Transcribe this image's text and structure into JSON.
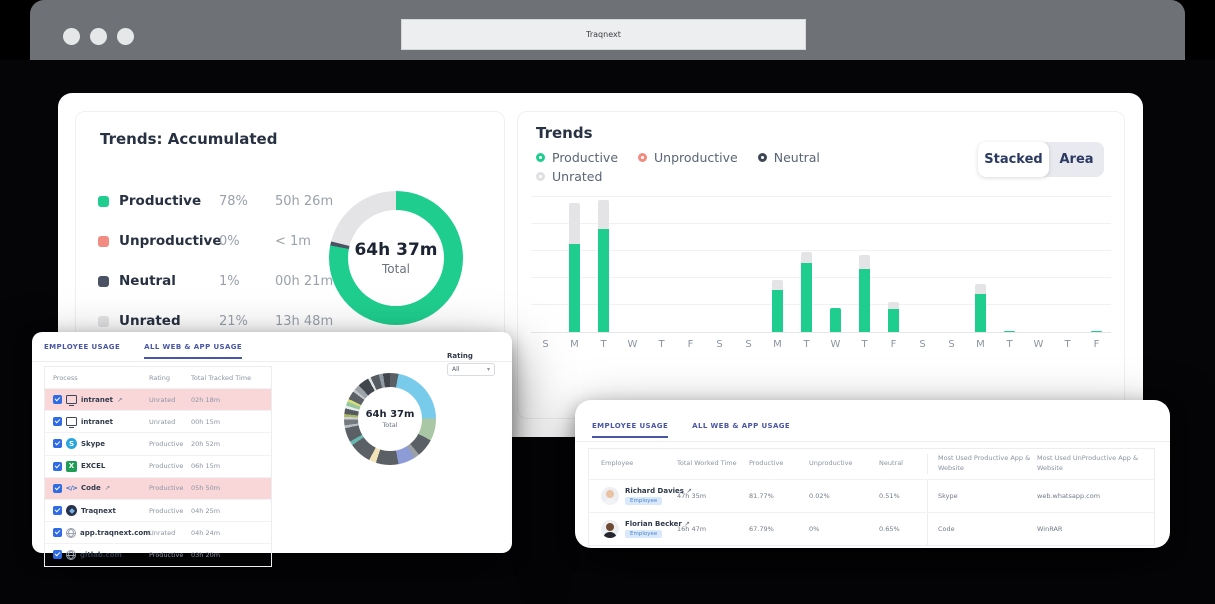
{
  "browser": {
    "url_text": "Traqnext"
  },
  "colors": {
    "productive": "#1fce8e",
    "unproductive": "#f28b82",
    "neutral": "#4a5264",
    "unrated": "#e4e4e6",
    "accent_indigo": "#4956a7",
    "flag_row_bg": "#f9d7d9"
  },
  "accumulated": {
    "title": "Trends: Accumulated",
    "legend": [
      {
        "label": "Productive",
        "pct": "78%",
        "time": "50h 26m",
        "color": "#1fce8e"
      },
      {
        "label": "Unproductive",
        "pct": "0%",
        "time": "< 1m",
        "color": "#f28b82"
      },
      {
        "label": "Neutral",
        "pct": "1%",
        "time": "00h 21m",
        "color": "#4a5264"
      },
      {
        "label": "Unrated",
        "pct": "21%",
        "time": "13h 48m",
        "color": "#e4e4e6"
      }
    ],
    "center_value": "64h 37m",
    "center_label": "Total"
  },
  "trends": {
    "title": "Trends",
    "legend_rows": [
      [
        {
          "label": "Productive",
          "color": "#1fce8e"
        },
        {
          "label": "Unproductive",
          "color": "#f28b82"
        },
        {
          "label": "Neutral",
          "color": "#3d4654"
        }
      ],
      [
        {
          "label": "Unrated",
          "color": "#e0e0e3"
        }
      ]
    ],
    "toggle": {
      "stacked_label": "Stacked",
      "area_label": "Area",
      "active": "Stacked"
    }
  },
  "usage_card": {
    "tabs": [
      "EMPLOYEE USAGE",
      "ALL WEB & APP USAGE"
    ],
    "active_tab": 1,
    "table": {
      "headers": [
        "Process",
        "Rating",
        "Total Tracked Time"
      ],
      "rows": [
        {
          "checked": true,
          "icon": "monitor",
          "name": "intranet",
          "external": true,
          "rating": "Unrated",
          "time": "02h 18m",
          "flagged": true
        },
        {
          "checked": true,
          "icon": "monitor",
          "name": "intranet",
          "external": false,
          "rating": "Unrated",
          "time": "00h 15m",
          "flagged": false
        },
        {
          "checked": true,
          "icon": "skype",
          "name": "Skype",
          "external": false,
          "rating": "Productive",
          "time": "20h 52m",
          "flagged": false
        },
        {
          "checked": true,
          "icon": "excel",
          "name": "EXCEL",
          "external": false,
          "rating": "Productive",
          "time": "06h 15m",
          "flagged": false
        },
        {
          "checked": true,
          "icon": "code",
          "name": "Code",
          "external": true,
          "rating": "Productive",
          "time": "05h 50m",
          "flagged": true
        },
        {
          "checked": true,
          "icon": "traqnext",
          "name": "Traqnext",
          "external": false,
          "rating": "Productive",
          "time": "04h 25m",
          "flagged": false
        },
        {
          "checked": true,
          "icon": "globe",
          "name": "app.traqnext.com",
          "external": false,
          "rating": "Unrated",
          "time": "04h 24m",
          "flagged": false
        },
        {
          "checked": true,
          "icon": "globe",
          "name": "gitlab.com",
          "external": false,
          "rating": "Productive",
          "time": "03h 20m",
          "flagged": false
        }
      ]
    },
    "rating_filter": {
      "label": "Rating",
      "value": "All"
    },
    "donut_center_value": "64h 37m",
    "donut_center_label": "Total"
  },
  "employee_card": {
    "tabs": [
      "EMPLOYEE USAGE",
      "ALL WEB & APP USAGE"
    ],
    "active_tab": 0,
    "table": {
      "headers": [
        "Employee",
        "Total Worked Time",
        "Productive",
        "Unproductive",
        "Neutral",
        "Most Used Productive App & Website",
        "Most Used UnProductive App & Website"
      ],
      "rows": [
        {
          "name": "Richard Davies",
          "badge": "Employee",
          "time": "47h 35m",
          "productive": "81.77%",
          "unproductive": "0.02%",
          "neutral": "0.51%",
          "top_productive": "Skype",
          "top_unproductive": "web.whatsapp.com",
          "avatar": {
            "skin": "#e9c2a4",
            "shirt": "#f2f3f5"
          }
        },
        {
          "name": "Florian Becker",
          "badge": "Employee",
          "time": "16h 47m",
          "productive": "67.79%",
          "unproductive": "0%",
          "neutral": "0.65%",
          "top_productive": "Code",
          "top_unproductive": "WinRAR",
          "avatar": {
            "skin": "#6e4a33",
            "shirt": "#23262e"
          }
        }
      ]
    }
  },
  "chart_data": [
    {
      "type": "pie",
      "id": "accumulated-donut",
      "title": "Trends: Accumulated",
      "center": "64h 37m",
      "center_label": "Total",
      "segments": [
        {
          "label": "Productive",
          "pct": 78,
          "color": "#1fce8e"
        },
        {
          "label": "Unproductive",
          "pct": 0,
          "color": "#f28b82"
        },
        {
          "label": "Neutral",
          "pct": 1,
          "color": "#4a5264"
        },
        {
          "label": "Unrated",
          "pct": 21,
          "color": "#e4e4e6"
        }
      ]
    },
    {
      "type": "bar",
      "id": "trends-stacked-bars",
      "title": "Trends",
      "stacked": true,
      "grid": true,
      "legend_position": "top",
      "xlabel": "",
      "ylabel": "",
      "ylim": [
        0,
        100
      ],
      "categories": [
        "S",
        "M",
        "T",
        "W",
        "T",
        "F",
        "S",
        "S",
        "M",
        "T",
        "W",
        "T",
        "F",
        "S",
        "S",
        "M",
        "T",
        "W",
        "T",
        "F"
      ],
      "series": [
        {
          "name": "Productive",
          "color": "#1fce8e",
          "values": [
            0,
            65,
            76,
            0,
            0,
            0,
            0,
            0,
            31,
            51,
            18,
            46,
            17,
            0,
            0,
            28,
            1,
            0,
            0,
            1
          ]
        },
        {
          "name": "Unrated",
          "color": "#e4e4e6",
          "values": [
            0,
            30,
            21,
            0,
            0,
            0,
            0,
            0,
            7,
            8,
            0,
            11,
            5,
            0,
            0,
            7,
            0,
            0,
            0,
            0
          ]
        }
      ]
    },
    {
      "type": "pie",
      "id": "web-app-usage-donut",
      "center": "64h 37m",
      "center_label": "Total",
      "segments": [
        {
          "color": "#5b6066",
          "pct": 3
        },
        {
          "color": "#79cbec",
          "pct": 22
        },
        {
          "color": "#a9c7a5",
          "pct": 8
        },
        {
          "color": "#5b6066",
          "pct": 6.5
        },
        {
          "color": "#9aa0a6",
          "pct": 2
        },
        {
          "color": "#8d9bd6",
          "pct": 6
        },
        {
          "color": "#5b6066",
          "pct": 8
        },
        {
          "color": "#f2e3b8",
          "pct": 2.5
        },
        {
          "color": "#5b6066",
          "pct": 8
        },
        {
          "color": "#69b7b0",
          "pct": 1.5
        },
        {
          "color": "#5b6066",
          "pct": 5
        },
        {
          "color": "#b9bdc1",
          "pct": 1
        },
        {
          "color": "#747a80",
          "pct": 2
        },
        {
          "color": "#cfd3d6",
          "pct": 1
        },
        {
          "color": "#aab864",
          "pct": 1
        },
        {
          "color": "#565b61",
          "pct": 2
        },
        {
          "color": "#e8eef0",
          "pct": 1
        },
        {
          "color": "#98c79b",
          "pct": 1.5
        },
        {
          "color": "#d6de7a",
          "pct": 1
        },
        {
          "color": "#5b6066",
          "pct": 3
        },
        {
          "color": "#c0c4c8",
          "pct": 1
        },
        {
          "color": "#9ca2a8",
          "pct": 2
        },
        {
          "color": "#40464c",
          "pct": 4
        },
        {
          "color": "#e0e4e6",
          "pct": 1
        },
        {
          "color": "#565b61",
          "pct": 3
        },
        {
          "color": "#8f9aa3",
          "pct": 1.5
        },
        {
          "color": "#40464c",
          "pct": 2.5
        }
      ]
    }
  ]
}
